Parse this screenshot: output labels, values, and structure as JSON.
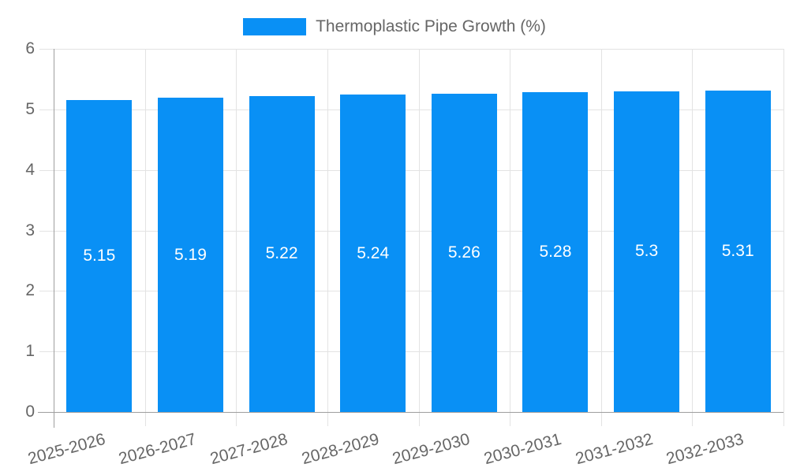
{
  "chart_data": {
    "type": "bar",
    "legend": {
      "label": "Thermoplastic Pipe Growth (%)",
      "position": "top"
    },
    "categories": [
      "2025-2026",
      "2026-2027",
      "2027-2028",
      "2028-2029",
      "2029-2030",
      "2030-2031",
      "2031-2032",
      "2032-2033"
    ],
    "values": [
      5.15,
      5.19,
      5.22,
      5.24,
      5.26,
      5.28,
      5.3,
      5.31
    ],
    "value_labels": [
      "5.15",
      "5.19",
      "5.22",
      "5.24",
      "5.26",
      "5.28",
      "5.3",
      "5.31"
    ],
    "xlabel": "",
    "ylabel": "",
    "ylim": [
      0,
      6
    ],
    "y_ticks": [
      0,
      1,
      2,
      3,
      4,
      5,
      6
    ],
    "grid": true,
    "colors": {
      "bar": "#0990f5",
      "grid": "#e3e3e3",
      "axis": "#9e9e9e",
      "tick_label": "#666666",
      "value_label": "#ffffff",
      "background": "#ffffff"
    }
  }
}
